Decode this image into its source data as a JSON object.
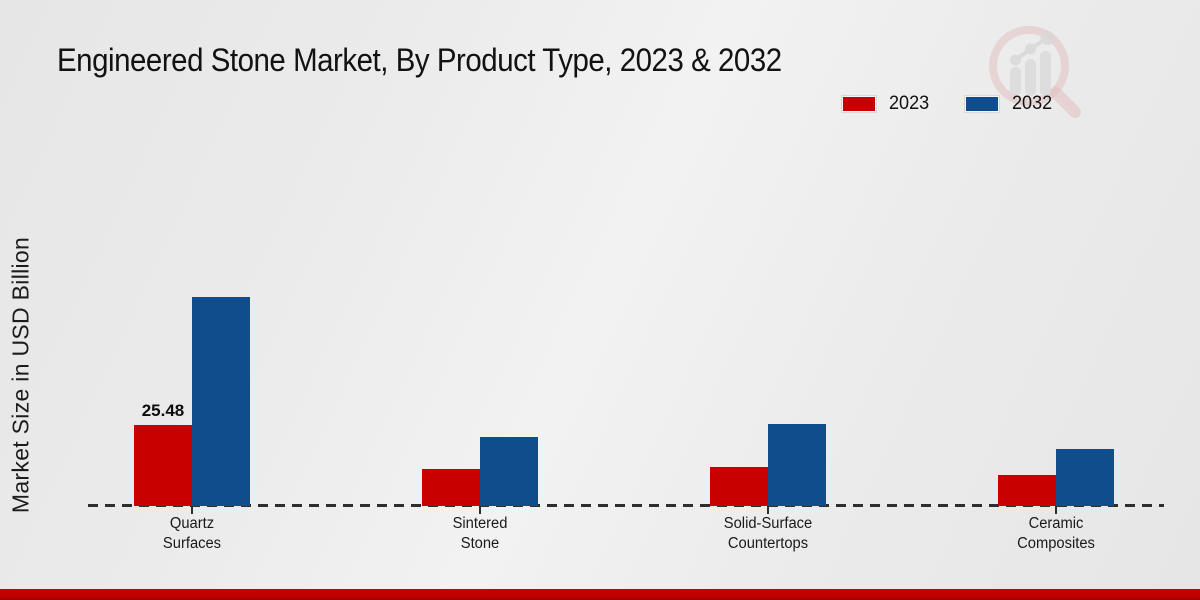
{
  "page": {
    "title": "Engineered Stone Market, By Product Type, 2023 & 2032",
    "ylabel": "Market Size in USD Billion"
  },
  "legend": {
    "items": [
      {
        "label": "2023",
        "color": "#c80000"
      },
      {
        "label": "2032",
        "color": "#0f4d8c"
      }
    ]
  },
  "colors": {
    "bar_2023": "#c80000",
    "bar_2032": "#0f4d8c",
    "baseline": "#2e2e2e",
    "footer_bar": "#c00000",
    "background": "#ebebeb",
    "title_text": "#121212"
  },
  "chart_data": {
    "type": "bar",
    "title": "Engineered Stone Market, By Product Type, 2023 & 2032",
    "xlabel": "",
    "ylabel": "Market Size in USD Billion",
    "categories": [
      "Quartz Surfaces",
      "Sintered Stone",
      "Solid-Surface Countertops",
      "Ceramic Composites"
    ],
    "categories_display": [
      [
        "Quartz",
        "Surfaces"
      ],
      [
        "Sintered",
        "Stone"
      ],
      [
        "Solid-Surface",
        "Countertops"
      ],
      [
        "Ceramic",
        "Composites"
      ]
    ],
    "series": [
      {
        "name": "2023",
        "color": "#c80000",
        "values": [
          25.48,
          11.6,
          12.3,
          9.7
        ]
      },
      {
        "name": "2032",
        "color": "#0f4d8c",
        "values": [
          65.7,
          21.7,
          25.8,
          17.9
        ]
      }
    ],
    "data_labels": [
      {
        "series": "2023",
        "category": "Quartz Surfaces",
        "text": "25.48"
      }
    ],
    "ylim": [
      0,
      70
    ],
    "grid": false,
    "axis_line_style": "dashed-baseline-only",
    "legend_position": "top-right"
  }
}
